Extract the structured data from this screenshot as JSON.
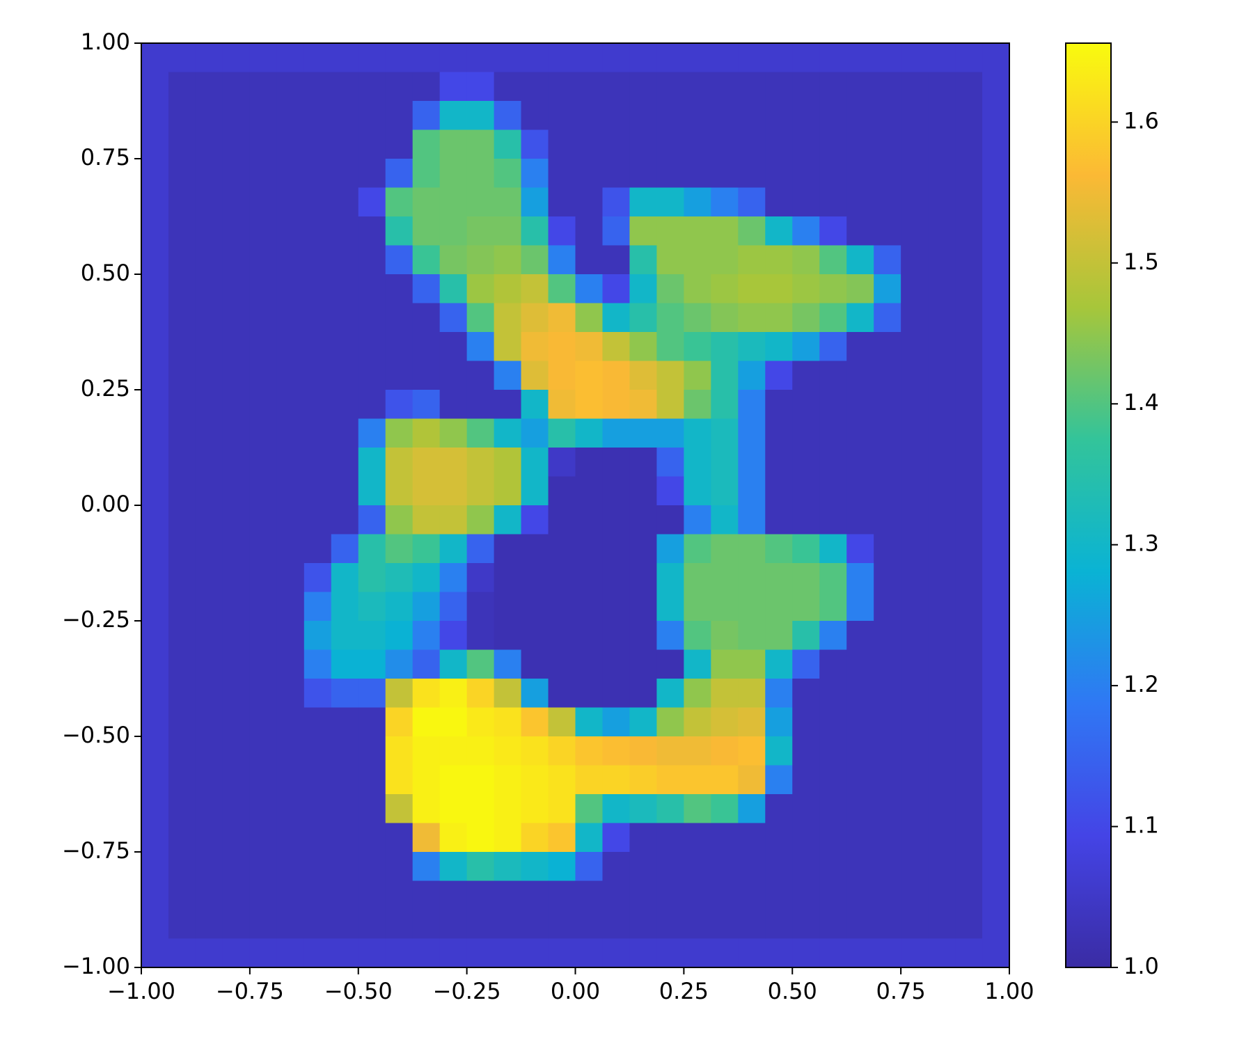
{
  "chart_data": {
    "type": "heatmap",
    "xlim": [
      -1,
      1
    ],
    "ylim": [
      -1,
      1
    ],
    "xticks": [
      {
        "value": -1,
        "label": "−1.00"
      },
      {
        "value": -0.75,
        "label": "−0.75"
      },
      {
        "value": -0.5,
        "label": "−0.50"
      },
      {
        "value": -0.25,
        "label": "−0.25"
      },
      {
        "value": 0,
        "label": "0.00"
      },
      {
        "value": 0.25,
        "label": "0.25"
      },
      {
        "value": 0.5,
        "label": "0.50"
      },
      {
        "value": 0.75,
        "label": "0.75"
      },
      {
        "value": 1,
        "label": "1.00"
      }
    ],
    "yticks": [
      {
        "value": -1,
        "label": "−1.00"
      },
      {
        "value": -0.75,
        "label": "−0.75"
      },
      {
        "value": -0.5,
        "label": "−0.50"
      },
      {
        "value": -0.25,
        "label": "−0.25"
      },
      {
        "value": 0,
        "label": "0.00"
      },
      {
        "value": 0.25,
        "label": "0.25"
      },
      {
        "value": 0.5,
        "label": "0.50"
      },
      {
        "value": 0.75,
        "label": "0.75"
      },
      {
        "value": 1,
        "label": "1.00"
      }
    ],
    "clim": [
      1.0,
      1.656
    ],
    "cticks": [
      {
        "value": 1.0,
        "label": "1.0"
      },
      {
        "value": 1.1,
        "label": "1.1"
      },
      {
        "value": 1.2,
        "label": "1.2"
      },
      {
        "value": 1.3,
        "label": "1.3"
      },
      {
        "value": 1.4,
        "label": "1.4"
      },
      {
        "value": 1.5,
        "label": "1.5"
      },
      {
        "value": 1.6,
        "label": "1.6"
      }
    ],
    "colormap": [
      "#3a2ca4",
      "#4444e6",
      "#2f78f4",
      "#0ab3d4",
      "#33c49a",
      "#a7c63a",
      "#fbb935",
      "#f9fb0e"
    ],
    "z": [
      [
        1.06,
        1.06,
        1.06,
        1.06,
        1.06,
        1.06,
        1.06,
        1.06,
        1.06,
        1.06,
        1.06,
        1.06,
        1.06,
        1.06,
        1.06,
        1.06,
        1.06,
        1.06,
        1.06,
        1.06,
        1.06,
        1.06,
        1.06,
        1.06,
        1.06,
        1.06,
        1.06,
        1.06,
        1.06,
        1.06,
        1.06,
        1.06
      ],
      [
        1.06,
        1.03,
        1.03,
        1.03,
        1.03,
        1.03,
        1.03,
        1.03,
        1.03,
        1.03,
        1.03,
        1.1,
        1.1,
        1.03,
        1.03,
        1.03,
        1.03,
        1.03,
        1.03,
        1.03,
        1.03,
        1.03,
        1.03,
        1.03,
        1.03,
        1.03,
        1.03,
        1.03,
        1.03,
        1.03,
        1.03,
        1.06
      ],
      [
        1.06,
        1.03,
        1.03,
        1.03,
        1.03,
        1.03,
        1.03,
        1.03,
        1.03,
        1.03,
        1.15,
        1.3,
        1.3,
        1.15,
        1.03,
        1.03,
        1.03,
        1.03,
        1.03,
        1.03,
        1.03,
        1.03,
        1.03,
        1.03,
        1.03,
        1.03,
        1.03,
        1.03,
        1.03,
        1.03,
        1.03,
        1.06
      ],
      [
        1.06,
        1.03,
        1.03,
        1.03,
        1.03,
        1.03,
        1.03,
        1.03,
        1.03,
        1.03,
        1.4,
        1.42,
        1.42,
        1.35,
        1.12,
        1.03,
        1.03,
        1.03,
        1.03,
        1.03,
        1.03,
        1.03,
        1.03,
        1.03,
        1.03,
        1.03,
        1.03,
        1.03,
        1.03,
        1.03,
        1.03,
        1.06
      ],
      [
        1.06,
        1.03,
        1.03,
        1.03,
        1.03,
        1.03,
        1.03,
        1.03,
        1.03,
        1.15,
        1.4,
        1.42,
        1.42,
        1.4,
        1.2,
        1.03,
        1.03,
        1.03,
        1.03,
        1.03,
        1.03,
        1.03,
        1.03,
        1.03,
        1.03,
        1.03,
        1.03,
        1.03,
        1.03,
        1.03,
        1.03,
        1.06
      ],
      [
        1.06,
        1.03,
        1.03,
        1.03,
        1.03,
        1.03,
        1.03,
        1.03,
        1.1,
        1.4,
        1.42,
        1.42,
        1.42,
        1.42,
        1.25,
        1.03,
        1.03,
        1.12,
        1.3,
        1.3,
        1.25,
        1.2,
        1.15,
        1.03,
        1.03,
        1.03,
        1.03,
        1.03,
        1.03,
        1.03,
        1.03,
        1.06
      ],
      [
        1.06,
        1.03,
        1.03,
        1.03,
        1.03,
        1.03,
        1.03,
        1.03,
        1.03,
        1.35,
        1.42,
        1.42,
        1.43,
        1.43,
        1.35,
        1.1,
        1.03,
        1.15,
        1.45,
        1.45,
        1.45,
        1.45,
        1.42,
        1.3,
        1.2,
        1.1,
        1.03,
        1.03,
        1.03,
        1.03,
        1.03,
        1.06
      ],
      [
        1.06,
        1.03,
        1.03,
        1.03,
        1.03,
        1.03,
        1.03,
        1.03,
        1.03,
        1.15,
        1.38,
        1.43,
        1.44,
        1.45,
        1.42,
        1.2,
        1.03,
        1.03,
        1.35,
        1.45,
        1.45,
        1.45,
        1.46,
        1.46,
        1.45,
        1.4,
        1.3,
        1.15,
        1.03,
        1.03,
        1.03,
        1.06
      ],
      [
        1.06,
        1.03,
        1.03,
        1.03,
        1.03,
        1.03,
        1.03,
        1.03,
        1.03,
        1.03,
        1.15,
        1.35,
        1.46,
        1.48,
        1.5,
        1.4,
        1.2,
        1.1,
        1.3,
        1.42,
        1.45,
        1.46,
        1.47,
        1.47,
        1.46,
        1.45,
        1.44,
        1.25,
        1.03,
        1.03,
        1.03,
        1.06
      ],
      [
        1.06,
        1.03,
        1.03,
        1.03,
        1.03,
        1.03,
        1.03,
        1.03,
        1.03,
        1.03,
        1.03,
        1.15,
        1.4,
        1.5,
        1.53,
        1.55,
        1.45,
        1.3,
        1.35,
        1.4,
        1.42,
        1.44,
        1.45,
        1.45,
        1.43,
        1.4,
        1.3,
        1.15,
        1.03,
        1.03,
        1.03,
        1.06
      ],
      [
        1.06,
        1.03,
        1.03,
        1.03,
        1.03,
        1.03,
        1.03,
        1.03,
        1.03,
        1.03,
        1.03,
        1.03,
        1.2,
        1.5,
        1.55,
        1.56,
        1.55,
        1.5,
        1.45,
        1.4,
        1.38,
        1.35,
        1.32,
        1.3,
        1.25,
        1.15,
        1.03,
        1.03,
        1.03,
        1.03,
        1.03,
        1.06
      ],
      [
        1.06,
        1.03,
        1.03,
        1.03,
        1.03,
        1.03,
        1.03,
        1.03,
        1.03,
        1.03,
        1.03,
        1.03,
        1.03,
        1.2,
        1.53,
        1.56,
        1.57,
        1.56,
        1.53,
        1.5,
        1.45,
        1.35,
        1.25,
        1.1,
        1.03,
        1.03,
        1.03,
        1.03,
        1.03,
        1.03,
        1.03,
        1.06
      ],
      [
        1.06,
        1.03,
        1.03,
        1.03,
        1.03,
        1.03,
        1.03,
        1.03,
        1.03,
        1.12,
        1.15,
        1.03,
        1.03,
        1.03,
        1.3,
        1.55,
        1.57,
        1.56,
        1.55,
        1.5,
        1.42,
        1.35,
        1.2,
        1.03,
        1.03,
        1.03,
        1.03,
        1.03,
        1.03,
        1.03,
        1.03,
        1.06
      ],
      [
        1.06,
        1.03,
        1.03,
        1.03,
        1.03,
        1.03,
        1.03,
        1.03,
        1.2,
        1.45,
        1.48,
        1.45,
        1.4,
        1.3,
        1.25,
        1.35,
        1.3,
        1.25,
        1.25,
        1.25,
        1.3,
        1.32,
        1.2,
        1.03,
        1.03,
        1.03,
        1.03,
        1.03,
        1.03,
        1.03,
        1.03,
        1.06
      ],
      [
        1.06,
        1.03,
        1.03,
        1.03,
        1.03,
        1.03,
        1.03,
        1.03,
        1.3,
        1.5,
        1.52,
        1.52,
        1.5,
        1.48,
        1.3,
        1.05,
        1.02,
        1.02,
        1.02,
        1.15,
        1.3,
        1.32,
        1.2,
        1.03,
        1.03,
        1.03,
        1.03,
        1.03,
        1.03,
        1.03,
        1.03,
        1.06
      ],
      [
        1.06,
        1.03,
        1.03,
        1.03,
        1.03,
        1.03,
        1.03,
        1.03,
        1.3,
        1.5,
        1.52,
        1.52,
        1.5,
        1.48,
        1.3,
        1.02,
        1.02,
        1.02,
        1.02,
        1.1,
        1.3,
        1.32,
        1.2,
        1.03,
        1.03,
        1.03,
        1.03,
        1.03,
        1.03,
        1.03,
        1.03,
        1.06
      ],
      [
        1.06,
        1.03,
        1.03,
        1.03,
        1.03,
        1.03,
        1.03,
        1.03,
        1.15,
        1.45,
        1.5,
        1.5,
        1.45,
        1.3,
        1.1,
        1.02,
        1.02,
        1.02,
        1.02,
        1.02,
        1.2,
        1.3,
        1.2,
        1.03,
        1.03,
        1.03,
        1.03,
        1.03,
        1.03,
        1.03,
        1.03,
        1.06
      ],
      [
        1.06,
        1.03,
        1.03,
        1.03,
        1.03,
        1.03,
        1.03,
        1.15,
        1.35,
        1.4,
        1.38,
        1.3,
        1.15,
        1.02,
        1.02,
        1.02,
        1.02,
        1.02,
        1.02,
        1.25,
        1.4,
        1.42,
        1.42,
        1.4,
        1.38,
        1.3,
        1.1,
        1.03,
        1.03,
        1.03,
        1.03,
        1.06
      ],
      [
        1.06,
        1.03,
        1.03,
        1.03,
        1.03,
        1.03,
        1.12,
        1.3,
        1.35,
        1.33,
        1.3,
        1.2,
        1.05,
        1.02,
        1.02,
        1.02,
        1.02,
        1.02,
        1.02,
        1.3,
        1.42,
        1.42,
        1.42,
        1.42,
        1.42,
        1.4,
        1.2,
        1.03,
        1.03,
        1.03,
        1.03,
        1.06
      ],
      [
        1.06,
        1.03,
        1.03,
        1.03,
        1.03,
        1.03,
        1.2,
        1.3,
        1.32,
        1.3,
        1.25,
        1.15,
        1.03,
        1.02,
        1.02,
        1.02,
        1.02,
        1.02,
        1.02,
        1.3,
        1.42,
        1.42,
        1.42,
        1.42,
        1.42,
        1.4,
        1.2,
        1.03,
        1.03,
        1.03,
        1.03,
        1.06
      ],
      [
        1.06,
        1.03,
        1.03,
        1.03,
        1.03,
        1.03,
        1.25,
        1.3,
        1.3,
        1.28,
        1.2,
        1.1,
        1.03,
        1.02,
        1.02,
        1.02,
        1.02,
        1.02,
        1.02,
        1.2,
        1.4,
        1.43,
        1.42,
        1.42,
        1.35,
        1.2,
        1.03,
        1.03,
        1.03,
        1.03,
        1.03,
        1.06
      ],
      [
        1.06,
        1.03,
        1.03,
        1.03,
        1.03,
        1.03,
        1.2,
        1.28,
        1.28,
        1.22,
        1.15,
        1.3,
        1.4,
        1.2,
        1.02,
        1.02,
        1.02,
        1.02,
        1.02,
        1.02,
        1.3,
        1.45,
        1.45,
        1.3,
        1.15,
        1.03,
        1.03,
        1.03,
        1.03,
        1.03,
        1.03,
        1.06
      ],
      [
        1.06,
        1.03,
        1.03,
        1.03,
        1.03,
        1.03,
        1.12,
        1.15,
        1.15,
        1.5,
        1.62,
        1.64,
        1.6,
        1.5,
        1.25,
        1.02,
        1.02,
        1.02,
        1.02,
        1.3,
        1.45,
        1.5,
        1.5,
        1.2,
        1.03,
        1.03,
        1.03,
        1.03,
        1.03,
        1.03,
        1.03,
        1.06
      ],
      [
        1.06,
        1.03,
        1.03,
        1.03,
        1.03,
        1.03,
        1.03,
        1.03,
        1.03,
        1.6,
        1.65,
        1.65,
        1.63,
        1.62,
        1.58,
        1.5,
        1.3,
        1.25,
        1.3,
        1.45,
        1.5,
        1.52,
        1.53,
        1.25,
        1.03,
        1.03,
        1.03,
        1.03,
        1.03,
        1.03,
        1.03,
        1.06
      ],
      [
        1.06,
        1.03,
        1.03,
        1.03,
        1.03,
        1.03,
        1.03,
        1.03,
        1.03,
        1.62,
        1.64,
        1.64,
        1.64,
        1.63,
        1.62,
        1.6,
        1.58,
        1.57,
        1.56,
        1.55,
        1.55,
        1.56,
        1.57,
        1.3,
        1.03,
        1.03,
        1.03,
        1.03,
        1.03,
        1.03,
        1.03,
        1.06
      ],
      [
        1.06,
        1.03,
        1.03,
        1.03,
        1.03,
        1.03,
        1.03,
        1.03,
        1.03,
        1.62,
        1.64,
        1.65,
        1.65,
        1.64,
        1.63,
        1.62,
        1.6,
        1.6,
        1.59,
        1.58,
        1.58,
        1.58,
        1.55,
        1.2,
        1.03,
        1.03,
        1.03,
        1.03,
        1.03,
        1.03,
        1.03,
        1.06
      ],
      [
        1.06,
        1.03,
        1.03,
        1.03,
        1.03,
        1.03,
        1.03,
        1.03,
        1.03,
        1.5,
        1.64,
        1.65,
        1.65,
        1.64,
        1.63,
        1.62,
        1.4,
        1.3,
        1.32,
        1.35,
        1.4,
        1.38,
        1.25,
        1.03,
        1.03,
        1.03,
        1.03,
        1.03,
        1.03,
        1.03,
        1.03,
        1.06
      ],
      [
        1.06,
        1.03,
        1.03,
        1.03,
        1.03,
        1.03,
        1.03,
        1.03,
        1.03,
        1.03,
        1.55,
        1.64,
        1.65,
        1.64,
        1.6,
        1.58,
        1.3,
        1.1,
        1.03,
        1.03,
        1.03,
        1.03,
        1.03,
        1.03,
        1.03,
        1.03,
        1.03,
        1.03,
        1.03,
        1.03,
        1.03,
        1.06
      ],
      [
        1.06,
        1.03,
        1.03,
        1.03,
        1.03,
        1.03,
        1.03,
        1.03,
        1.03,
        1.03,
        1.2,
        1.3,
        1.35,
        1.32,
        1.3,
        1.28,
        1.15,
        1.03,
        1.03,
        1.03,
        1.03,
        1.03,
        1.03,
        1.03,
        1.03,
        1.03,
        1.03,
        1.03,
        1.03,
        1.03,
        1.03,
        1.06
      ],
      [
        1.06,
        1.03,
        1.03,
        1.03,
        1.03,
        1.03,
        1.03,
        1.03,
        1.03,
        1.03,
        1.03,
        1.03,
        1.03,
        1.03,
        1.03,
        1.03,
        1.03,
        1.03,
        1.03,
        1.03,
        1.03,
        1.03,
        1.03,
        1.03,
        1.03,
        1.03,
        1.03,
        1.03,
        1.03,
        1.03,
        1.03,
        1.06
      ],
      [
        1.06,
        1.03,
        1.03,
        1.03,
        1.03,
        1.03,
        1.03,
        1.03,
        1.03,
        1.03,
        1.03,
        1.03,
        1.03,
        1.03,
        1.03,
        1.03,
        1.03,
        1.03,
        1.03,
        1.03,
        1.03,
        1.03,
        1.03,
        1.03,
        1.03,
        1.03,
        1.03,
        1.03,
        1.03,
        1.03,
        1.03,
        1.06
      ],
      [
        1.06,
        1.06,
        1.06,
        1.06,
        1.06,
        1.06,
        1.06,
        1.06,
        1.06,
        1.06,
        1.06,
        1.06,
        1.06,
        1.06,
        1.06,
        1.06,
        1.06,
        1.06,
        1.06,
        1.06,
        1.06,
        1.06,
        1.06,
        1.06,
        1.06,
        1.06,
        1.06,
        1.06,
        1.06,
        1.06,
        1.06,
        1.06
      ]
    ]
  }
}
